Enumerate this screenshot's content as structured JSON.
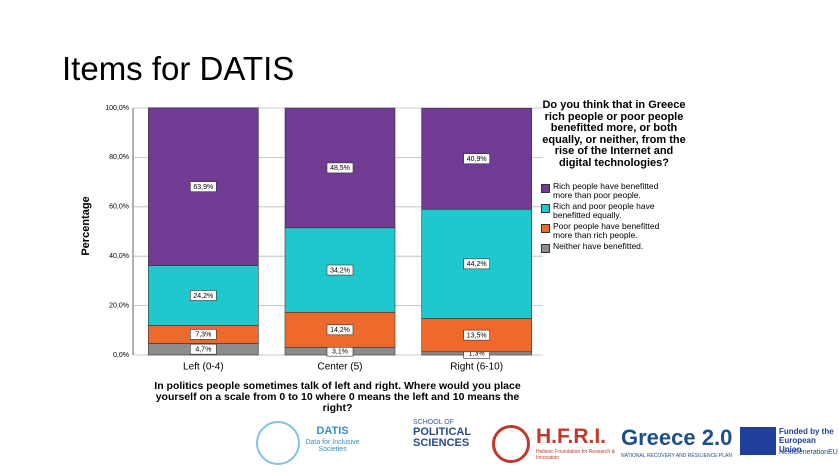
{
  "slide_title": "Items for DATIS",
  "chart_data": {
    "type": "stacked-bar",
    "legend_title": "Do you think that in Greece rich people or poor people benefitted more, or both equally, or neither, from the rise of the Internet and digital technologies?",
    "x_label": "In politics people sometimes talk of left and right. Where would you place yourself on a scale from 0 to 10 where 0 means the left and 10 means the right?",
    "y_label": "Percentage",
    "categories": [
      "Left (0-4)",
      "Center (5)",
      "Right (6-10)"
    ],
    "series": [
      {
        "name": "Neither have benefitted.",
        "color": "#8c8c8c",
        "values": [
          4.7,
          3.1,
          1.3
        ],
        "value_labels": [
          "4,7%",
          "3,1%",
          "1,3%"
        ]
      },
      {
        "name": "Poor people have benefitted more than rich people.",
        "color": "#ee6a2c",
        "values": [
          7.3,
          14.2,
          13.5
        ],
        "value_labels": [
          "7,3%",
          "14,2%",
          "13,5%"
        ]
      },
      {
        "name": "Rich and poor people have benefitted equally.",
        "color": "#1fc8cc",
        "values": [
          24.2,
          34.2,
          44.2
        ],
        "value_labels": [
          "24,2%",
          "34,2%",
          "44,2%"
        ]
      },
      {
        "name": "Rich people have benefitted more than poor people.",
        "color": "#713b94",
        "values": [
          63.9,
          48.5,
          40.9
        ],
        "value_labels": [
          "63,9%",
          "48,5%",
          "40,9%"
        ]
      }
    ],
    "ylim": [
      0,
      100
    ],
    "yticks": [
      {
        "value": 0,
        "label": "0,0%"
      },
      {
        "value": 20,
        "label": "20,0%"
      },
      {
        "value": 40,
        "label": "40,0%"
      },
      {
        "value": 60,
        "label": "60,0%"
      },
      {
        "value": 80,
        "label": "80,0%"
      },
      {
        "value": 100,
        "label": "100,0%"
      }
    ],
    "grid": true
  },
  "logos": {
    "datis": "DATIS",
    "datis_sub": "Data for Inclusive Societies",
    "school_small": "SCHOOL OF",
    "school_big": "POLITICAL SCIENCES",
    "hfri": "H.F.R.I.",
    "hfri_sub": "Hellenic Foundation for Research & Innovation",
    "greece": "Greece 2.0",
    "greece_sub": "NATIONAL RECOVERY AND RESILIENCE PLAN",
    "eu": "Funded by the European Union",
    "eu_sub": "NextGenerationEU"
  }
}
